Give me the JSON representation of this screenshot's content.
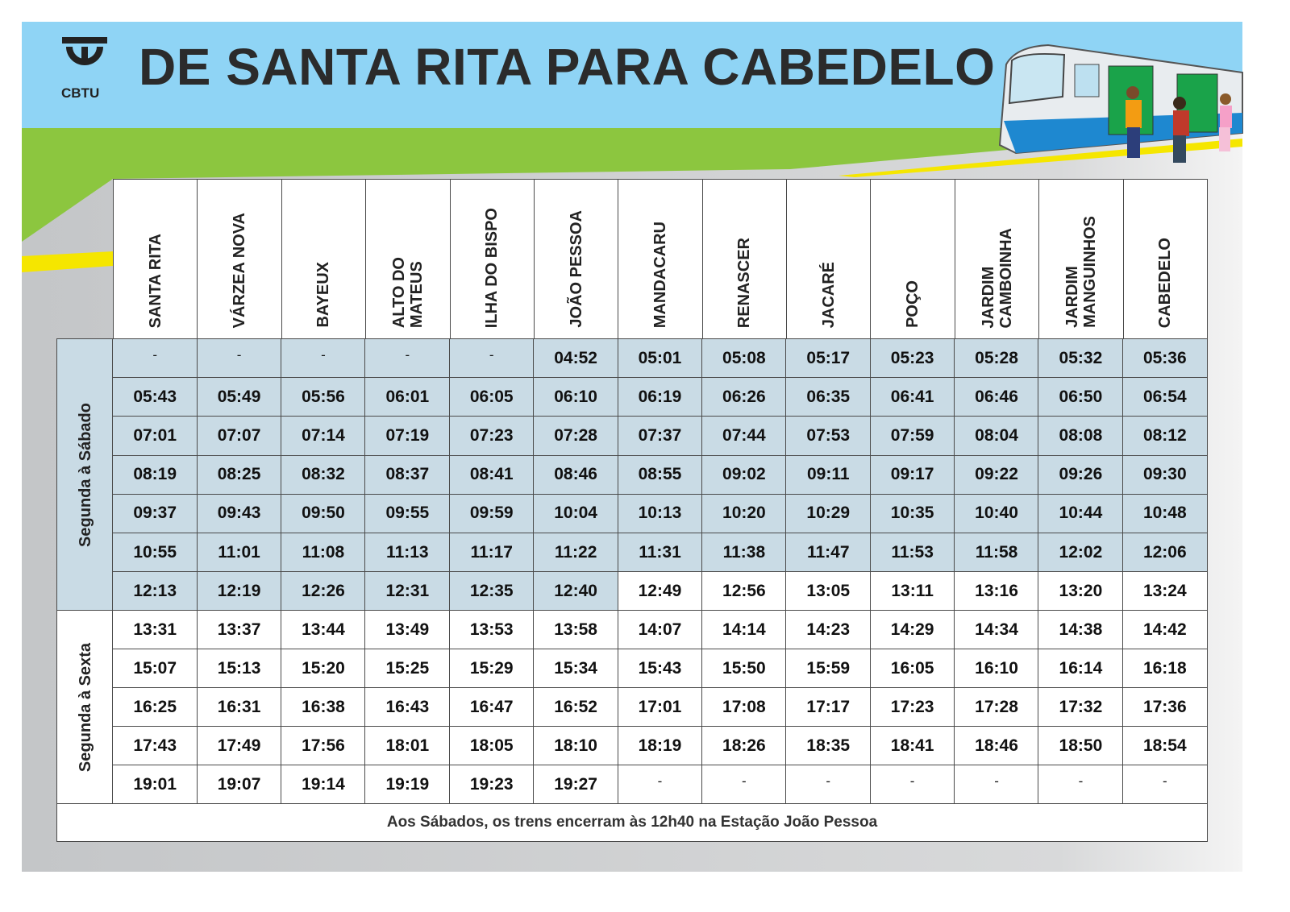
{
  "header": {
    "logo": "CBTU",
    "title": "DE SANTA RITA PARA CABEDELO"
  },
  "table": {
    "columns": [
      [
        "SANTA RITA"
      ],
      [
        "VÁRZEA NOVA"
      ],
      [
        "BAYEUX"
      ],
      [
        "ALTO DO",
        "MATEUS"
      ],
      [
        "ILHA DO BISPO"
      ],
      [
        "JOÃO PESSOA"
      ],
      [
        "MANDACARU"
      ],
      [
        "RENASCER"
      ],
      [
        "JACARÉ"
      ],
      [
        "POÇO"
      ],
      [
        "JARDIM",
        "CAMBOINHA"
      ],
      [
        "JARDIM",
        "MANGUINHOS"
      ],
      [
        "CABEDELO"
      ]
    ],
    "groups": [
      {
        "label": "Segunda à Sábado",
        "rows": [
          [
            "-",
            "-",
            "-",
            "-",
            "-",
            "04:52",
            "05:01",
            "05:08",
            "05:17",
            "05:23",
            "05:28",
            "05:32",
            "05:36"
          ],
          [
            "05:43",
            "05:49",
            "05:56",
            "06:01",
            "06:05",
            "06:10",
            "06:19",
            "06:26",
            "06:35",
            "06:41",
            "06:46",
            "06:50",
            "06:54"
          ],
          [
            "07:01",
            "07:07",
            "07:14",
            "07:19",
            "07:23",
            "07:28",
            "07:37",
            "07:44",
            "07:53",
            "07:59",
            "08:04",
            "08:08",
            "08:12"
          ],
          [
            "08:19",
            "08:25",
            "08:32",
            "08:37",
            "08:41",
            "08:46",
            "08:55",
            "09:02",
            "09:11",
            "09:17",
            "09:22",
            "09:26",
            "09:30"
          ],
          [
            "09:37",
            "09:43",
            "09:50",
            "09:55",
            "09:59",
            "10:04",
            "10:13",
            "10:20",
            "10:29",
            "10:35",
            "10:40",
            "10:44",
            "10:48"
          ],
          [
            "10:55",
            "11:01",
            "11:08",
            "11:13",
            "11:17",
            "11:22",
            "11:31",
            "11:38",
            "11:47",
            "11:53",
            "11:58",
            "12:02",
            "12:06"
          ],
          [
            "12:13",
            "12:19",
            "12:26",
            "12:31",
            "12:35",
            "12:40",
            "12:49",
            "12:56",
            "13:05",
            "13:11",
            "13:16",
            "13:20",
            "13:24"
          ]
        ]
      },
      {
        "label": "Segunda à Sexta",
        "rows": [
          [
            "13:31",
            "13:37",
            "13:44",
            "13:49",
            "13:53",
            "13:58",
            "14:07",
            "14:14",
            "14:23",
            "14:29",
            "14:34",
            "14:38",
            "14:42"
          ],
          [
            "15:07",
            "15:13",
            "15:20",
            "15:25",
            "15:29",
            "15:34",
            "15:43",
            "15:50",
            "15:59",
            "16:05",
            "16:10",
            "16:14",
            "16:18"
          ],
          [
            "16:25",
            "16:31",
            "16:38",
            "16:43",
            "16:47",
            "16:52",
            "17:01",
            "17:08",
            "17:17",
            "17:23",
            "17:28",
            "17:32",
            "17:36"
          ],
          [
            "17:43",
            "17:49",
            "17:56",
            "18:01",
            "18:05",
            "18:10",
            "18:19",
            "18:26",
            "18:35",
            "18:41",
            "18:46",
            "18:50",
            "18:54"
          ],
          [
            "19:01",
            "19:07",
            "19:14",
            "19:19",
            "19:23",
            "19:27",
            "-",
            "-",
            "-",
            "-",
            "-",
            "-",
            "-"
          ]
        ]
      }
    ],
    "note": "Aos Sábados, os trens encerram às 12h40 na Estação João Pessoa"
  }
}
